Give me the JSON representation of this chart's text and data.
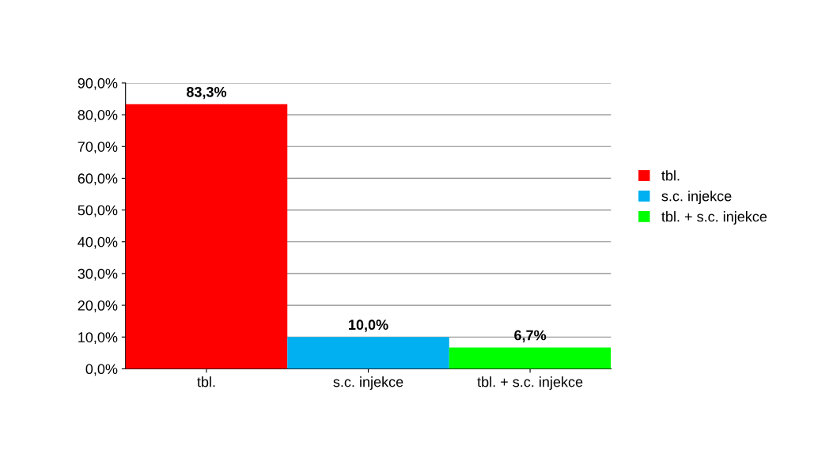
{
  "chart_data": {
    "type": "bar",
    "categories": [
      "tbl.",
      "s.c. injekce",
      "tbl. + s.c. injekce"
    ],
    "series": [
      {
        "name": "tbl.",
        "color": "#ff0000",
        "values": [
          83.3,
          null,
          null
        ],
        "value_labels": [
          "83,3%",
          null,
          null
        ]
      },
      {
        "name": "s.c. injekce",
        "color": "#00b0f0",
        "values": [
          null,
          10.0,
          null
        ],
        "value_labels": [
          null,
          "10,0%",
          null
        ]
      },
      {
        "name": "tbl. + s.c. injekce",
        "color": "#00ff00",
        "values": [
          null,
          null,
          6.7
        ],
        "value_labels": [
          null,
          null,
          "6,7%"
        ]
      }
    ],
    "ylim": [
      0,
      90
    ],
    "yticks": [
      {
        "value": 0,
        "label": "0,0%"
      },
      {
        "value": 10,
        "label": "10,0%"
      },
      {
        "value": 20,
        "label": "20,0%"
      },
      {
        "value": 30,
        "label": "30,0%"
      },
      {
        "value": 40,
        "label": "40,0%"
      },
      {
        "value": 50,
        "label": "50,0%"
      },
      {
        "value": 60,
        "label": "60,0%"
      },
      {
        "value": 70,
        "label": "70,0%"
      },
      {
        "value": 80,
        "label": "80,0%"
      },
      {
        "value": 90,
        "label": "90,0%"
      }
    ],
    "grid": "y",
    "legend": "right"
  }
}
